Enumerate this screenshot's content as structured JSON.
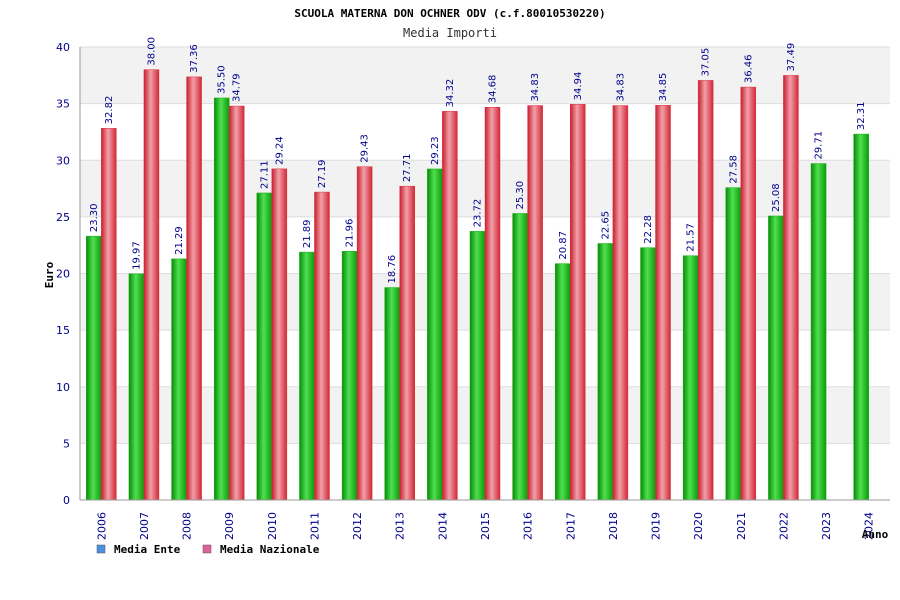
{
  "colors": {
    "series_ente": "#10b010",
    "series_nazionale": "#e03040",
    "legend_ente": "#4a90e2",
    "legend_nazionale": "#e0609a",
    "axis_text": "#00008b",
    "band": "#f2f2f2"
  },
  "chart_data": {
    "type": "bar",
    "title": "SCUOLA MATERNA DON OCHNER ODV (c.f.80010530220)",
    "subtitle": "Media Importi",
    "xlabel": "Anno",
    "ylabel": "Euro",
    "ylim": [
      0,
      40
    ],
    "yticks": [
      0,
      5,
      10,
      15,
      20,
      25,
      30,
      35,
      40
    ],
    "grid": true,
    "legend_position": "bottom-left",
    "categories": [
      "2006",
      "2007",
      "2008",
      "2009",
      "2010",
      "2011",
      "2012",
      "2013",
      "2014",
      "2015",
      "2016",
      "2017",
      "2018",
      "2019",
      "2020",
      "2021",
      "2022",
      "2023",
      "2024"
    ],
    "series": [
      {
        "name": "Media Ente",
        "values": [
          23.3,
          19.97,
          21.29,
          35.5,
          27.11,
          21.89,
          21.96,
          18.76,
          29.23,
          23.72,
          25.3,
          20.87,
          22.65,
          22.28,
          21.57,
          27.58,
          25.08,
          29.71,
          32.31
        ],
        "labels": [
          "23.30",
          "19.97",
          "21.29",
          "35.50",
          "27.11",
          "21.89",
          "21.96",
          "18.76",
          "29.23",
          "23.72",
          "25.30",
          "20.87",
          "22.65",
          "22.28",
          "21.57",
          "27.58",
          "25.08",
          "29.71",
          "32.31"
        ]
      },
      {
        "name": "Media Nazionale",
        "values": [
          32.82,
          38.0,
          37.36,
          34.79,
          29.24,
          27.19,
          29.43,
          27.71,
          34.32,
          34.68,
          34.83,
          34.94,
          34.83,
          34.85,
          37.05,
          36.46,
          37.49,
          null,
          null
        ],
        "labels": [
          "32.82",
          "38.00",
          "37.36",
          "34.79",
          "29.24",
          "27.19",
          "29.43",
          "27.71",
          "34.32",
          "34.68",
          "34.83",
          "34.94",
          "34.83",
          "34.85",
          "37.05",
          "36.46",
          "37.49",
          "",
          ""
        ]
      }
    ]
  }
}
